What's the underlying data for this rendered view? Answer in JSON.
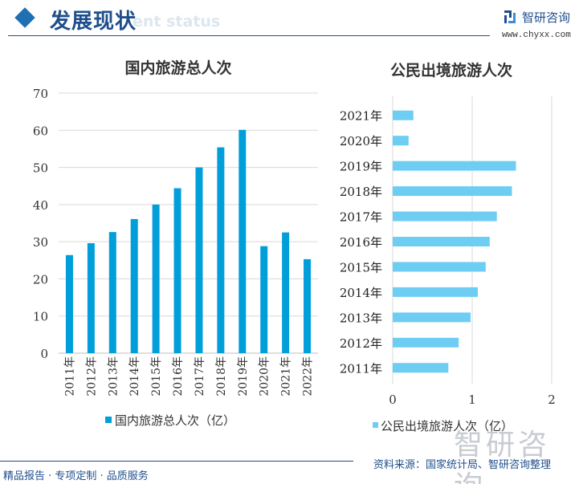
{
  "header": {
    "title": "发展现状",
    "subtitle_watermark": "ent status",
    "brand": "智研咨询",
    "url": "www.chyxx.com"
  },
  "footer": {
    "slogan": "精品报告 · 专项定制 · 品质服务",
    "source": "资料来源：国家统计局、智研咨询整理",
    "watermark": "智研咨询"
  },
  "colors": {
    "left_bar": "#009fda",
    "right_bar": "#6dcdf3",
    "accent": "#1f4e8c",
    "grid": "#d9d9d9"
  },
  "chart_data": [
    {
      "type": "bar",
      "title": "国内旅游总人次",
      "categories": [
        "2011年",
        "2012年",
        "2013年",
        "2014年",
        "2015年",
        "2016年",
        "2017年",
        "2018年",
        "2019年",
        "2020年",
        "2021年",
        "2022年"
      ],
      "series": [
        {
          "name": "国内旅游总人次（亿）",
          "values": [
            26.4,
            29.6,
            32.6,
            36.1,
            40.0,
            44.4,
            50.0,
            55.4,
            60.1,
            28.8,
            32.5,
            25.3
          ]
        }
      ],
      "ylim": [
        0,
        70
      ],
      "yticks": [
        "0",
        "10",
        "20",
        "30",
        "40",
        "50",
        "60",
        "70"
      ],
      "grid": true,
      "legend": "bottom"
    },
    {
      "type": "bar",
      "orientation": "horizontal",
      "title": "公民出境旅游人次",
      "categories": [
        "2011年",
        "2012年",
        "2013年",
        "2014年",
        "2015年",
        "2016年",
        "2017年",
        "2018年",
        "2019年",
        "2020年",
        "2021年"
      ],
      "series": [
        {
          "name": "公民出境旅游人次（亿）",
          "values": [
            0.7,
            0.83,
            0.98,
            1.07,
            1.17,
            1.22,
            1.31,
            1.5,
            1.55,
            0.2,
            0.26
          ]
        }
      ],
      "xlim": [
        0,
        2
      ],
      "xticks": [
        "0",
        "1",
        "2"
      ],
      "grid": true,
      "legend": "bottom"
    }
  ]
}
